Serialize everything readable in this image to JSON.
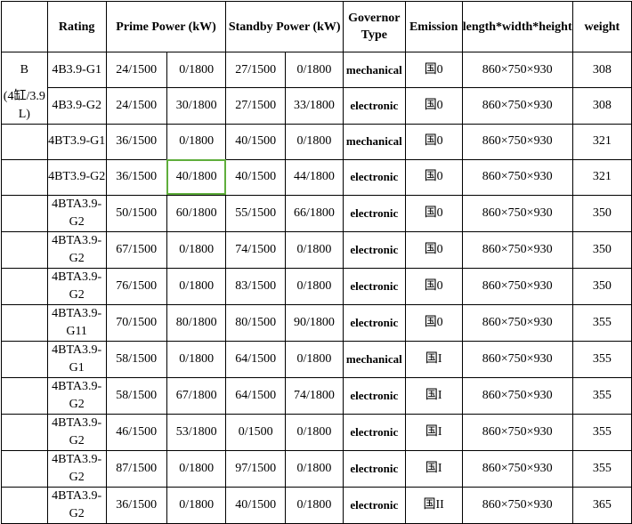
{
  "headers": {
    "series": "",
    "rating": "Rating",
    "prime": "Prime Power (kW)",
    "standby": "Standby Power (kW)",
    "governor": "Governor Type",
    "emission": "Emission",
    "dims": "length*width*height",
    "weight": "weight"
  },
  "series": {
    "name": "B",
    "desc": "(4缸/3.9L)"
  },
  "rows": [
    {
      "model": "4B3.9-G1",
      "prime_a": "24/1500",
      "prime_b": "0/1800",
      "standby_a": "27/1500",
      "standby_b": "0/1800",
      "governor": "mechanical",
      "emission": "国0",
      "dims": "860×750×930",
      "weight": "308"
    },
    {
      "model": "4B3.9-G2",
      "prime_a": "24/1500",
      "prime_b": "30/1800",
      "standby_a": "27/1500",
      "standby_b": "33/1800",
      "governor": "electronic",
      "emission": "国0",
      "dims": "860×750×930",
      "weight": "308"
    },
    {
      "model": "4BT3.9-G1",
      "prime_a": "36/1500",
      "prime_b": "0/1800",
      "standby_a": "40/1500",
      "standby_b": "0/1800",
      "governor": "mechanical",
      "emission": "国0",
      "dims": "860×750×930",
      "weight": "321"
    },
    {
      "model": "4BT3.9-G2",
      "prime_a": "36/1500",
      "prime_b": "40/1800",
      "standby_a": "40/1500",
      "standby_b": "44/1800",
      "governor": "electronic",
      "emission": "国0",
      "dims": "860×750×930",
      "weight": "321"
    },
    {
      "model": "4BTA3.9-G2",
      "prime_a": "50/1500",
      "prime_b": "60/1800",
      "standby_a": "55/1500",
      "standby_b": "66/1800",
      "governor": "electronic",
      "emission": "国0",
      "dims": "860×750×930",
      "weight": "350"
    },
    {
      "model": "4BTA3.9-G2",
      "prime_a": "67/1500",
      "prime_b": "0/1800",
      "standby_a": "74/1500",
      "standby_b": "0/1800",
      "governor": "electronic",
      "emission": "国0",
      "dims": "860×750×930",
      "weight": "350"
    },
    {
      "model": "4BTA3.9-G2",
      "prime_a": "76/1500",
      "prime_b": "0/1800",
      "standby_a": "83/1500",
      "standby_b": "0/1800",
      "governor": "electronic",
      "emission": "国0",
      "dims": "860×750×930",
      "weight": "350"
    },
    {
      "model": "4BTA3.9-G11",
      "prime_a": "70/1500",
      "prime_b": "80/1800",
      "standby_a": "80/1500",
      "standby_b": "90/1800",
      "governor": "electronic",
      "emission": "国0",
      "dims": "860×750×930",
      "weight": "355"
    },
    {
      "model": "4BTA3.9-G1",
      "prime_a": "58/1500",
      "prime_b": "0/1800",
      "standby_a": "64/1500",
      "standby_b": "0/1800",
      "governor": "mechanical",
      "emission": "国I",
      "dims": "860×750×930",
      "weight": "355"
    },
    {
      "model": "4BTA3.9-G2",
      "prime_a": "58/1500",
      "prime_b": "67/1800",
      "standby_a": "64/1500",
      "standby_b": "74/1800",
      "governor": "electronic",
      "emission": "国I",
      "dims": "860×750×930",
      "weight": "355"
    },
    {
      "model": "4BTA3.9-G2",
      "prime_a": "46/1500",
      "prime_b": "53/1800",
      "standby_a": "0/1500",
      "standby_b": "0/1800",
      "governor": "electronic",
      "emission": "国I",
      "dims": "860×750×930",
      "weight": "355"
    },
    {
      "model": "4BTA3.9-G2",
      "prime_a": "87/1500",
      "prime_b": "0/1800",
      "standby_a": "97/1500",
      "standby_b": "0/1800",
      "governor": "electronic",
      "emission": "国I",
      "dims": "860×750×930",
      "weight": "355"
    },
    {
      "model": "4BTA3.9-G2",
      "prime_a": "36/1500",
      "prime_b": "0/1800",
      "standby_a": "40/1500",
      "standby_b": "0/1800",
      "governor": "electronic",
      "emission": "国II",
      "dims": "860×750×930",
      "weight": "365"
    }
  ],
  "selection": {
    "row": 3,
    "column": "prime_b"
  },
  "colors": {
    "grid": "#000000",
    "selection": "#5fae3c",
    "background": "#ffffff"
  }
}
